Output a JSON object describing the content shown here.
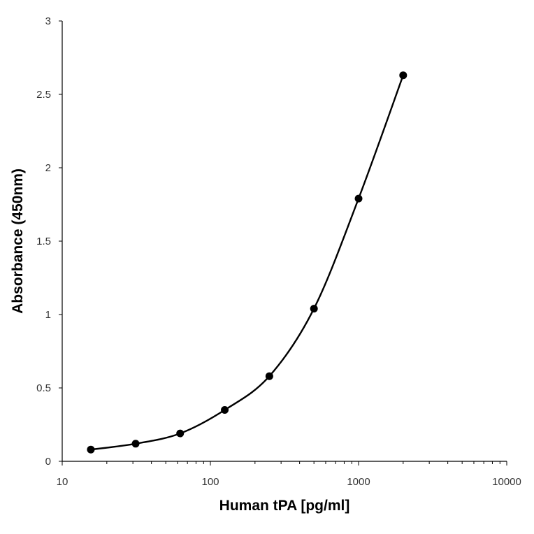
{
  "chart_data": {
    "type": "scatter",
    "title": "",
    "xlabel": "Human tPA [pg/ml]",
    "ylabel": "Absorbance (450nm)",
    "x_scale": "log",
    "xlim": [
      10,
      10000
    ],
    "ylim": [
      0,
      3
    ],
    "x_tick_labels": [
      "10",
      "100",
      "1000",
      "10000"
    ],
    "y_tick_labels": [
      "0",
      "0.5",
      "1",
      "1.5",
      "2",
      "2.5",
      "3"
    ],
    "grid": false,
    "legend": "none",
    "series": [
      {
        "x": [
          15.6,
          31.3,
          62.5,
          125,
          250,
          500,
          1000,
          2000
        ],
        "y": [
          0.08,
          0.12,
          0.19,
          0.35,
          0.58,
          1.04,
          1.79,
          2.63
        ],
        "marker": "circle",
        "line": "smooth",
        "color": "#000000"
      }
    ]
  }
}
